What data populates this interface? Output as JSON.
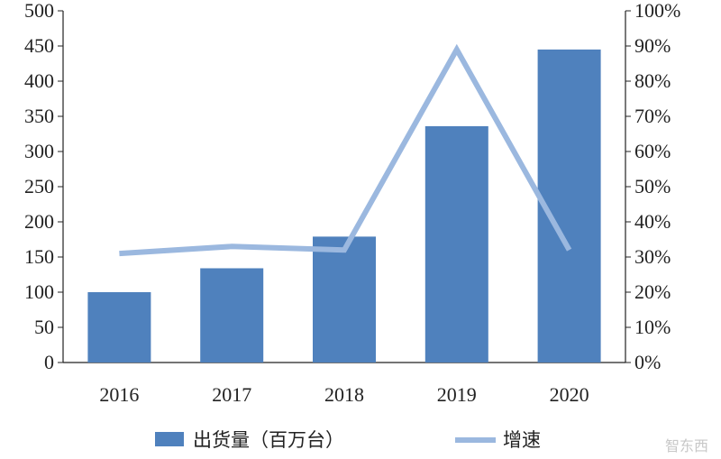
{
  "chart_data": {
    "type": "bar",
    "categories": [
      "2016",
      "2017",
      "2018",
      "2019",
      "2020"
    ],
    "series": [
      {
        "name": "出货量（百万台）",
        "type": "bar",
        "axis": "left",
        "values": [
          100,
          134,
          179,
          336,
          445
        ]
      },
      {
        "name": "增速",
        "type": "line",
        "axis": "right",
        "values": [
          0.31,
          0.33,
          0.32,
          0.89,
          0.32
        ]
      }
    ],
    "y_left": {
      "min": 0,
      "max": 500,
      "step": 50
    },
    "y_right": {
      "min": 0,
      "max": 1.0,
      "step": 0.1,
      "format": "percent"
    },
    "grid": false,
    "legend": {
      "position": "bottom"
    },
    "colors": {
      "bar": "#4f81bd",
      "line": "#9bb8df",
      "axis": "#222222"
    }
  },
  "watermark": {
    "text": "智东西"
  }
}
